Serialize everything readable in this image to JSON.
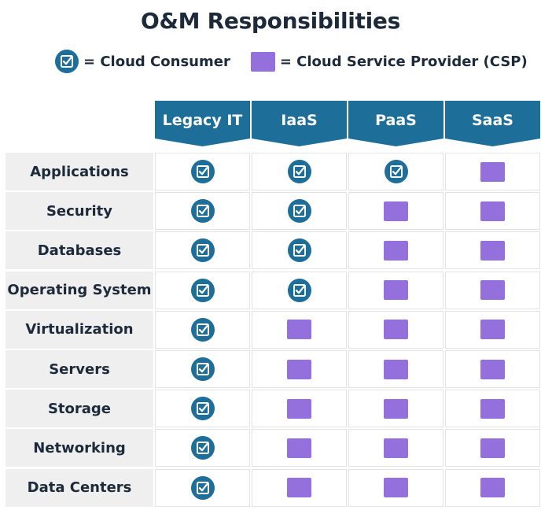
{
  "title": "O&M Responsibilities",
  "legend": {
    "consumer_label": "= Cloud Consumer",
    "provider_label": "= Cloud Service Provider (CSP)",
    "consumer_icon": "checkbox-circle-icon",
    "provider_icon": "purple-square-icon"
  },
  "colors": {
    "consumer": "#1d6e99",
    "provider": "#9370db",
    "header": "#1d6e99",
    "row_label_bg": "#efefef"
  },
  "columns": [
    "Legacy IT",
    "IaaS",
    "PaaS",
    "SaaS"
  ],
  "rows": [
    {
      "label": "Applications",
      "cells": [
        "consumer",
        "consumer",
        "consumer",
        "provider"
      ]
    },
    {
      "label": "Security",
      "cells": [
        "consumer",
        "consumer",
        "provider",
        "provider"
      ]
    },
    {
      "label": "Databases",
      "cells": [
        "consumer",
        "consumer",
        "provider",
        "provider"
      ]
    },
    {
      "label": "Operating System",
      "cells": [
        "consumer",
        "consumer",
        "provider",
        "provider"
      ]
    },
    {
      "label": "Virtualization",
      "cells": [
        "consumer",
        "provider",
        "provider",
        "provider"
      ]
    },
    {
      "label": "Servers",
      "cells": [
        "consumer",
        "provider",
        "provider",
        "provider"
      ]
    },
    {
      "label": "Storage",
      "cells": [
        "consumer",
        "provider",
        "provider",
        "provider"
      ]
    },
    {
      "label": "Networking",
      "cells": [
        "consumer",
        "provider",
        "provider",
        "provider"
      ]
    },
    {
      "label": "Data Centers",
      "cells": [
        "consumer",
        "provider",
        "provider",
        "provider"
      ]
    }
  ]
}
